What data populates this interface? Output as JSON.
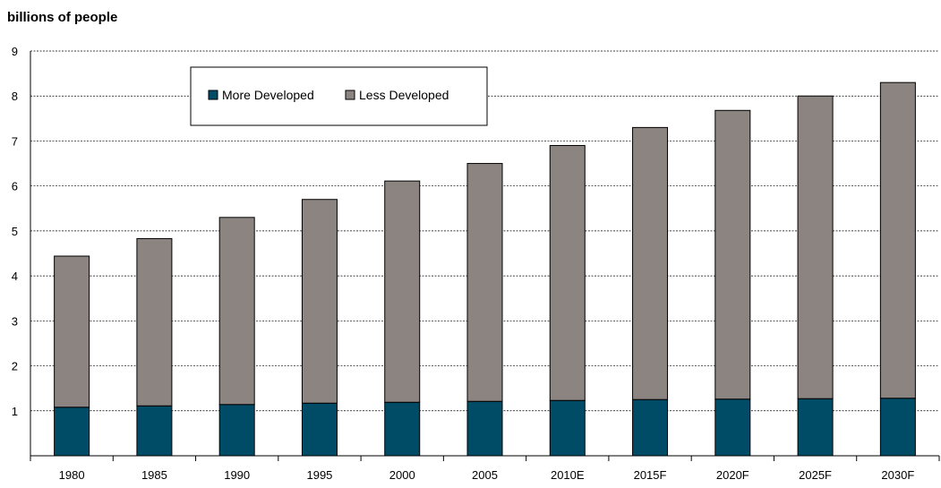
{
  "chart_data": {
    "type": "bar",
    "stacked": true,
    "title": "",
    "xlabel": "",
    "ylabel": "billions of people",
    "ylim": [
      0,
      9
    ],
    "yticks": [
      1,
      2,
      3,
      4,
      5,
      6,
      7,
      8,
      9
    ],
    "grid": true,
    "legend_position": "top-left",
    "categories": [
      "1980",
      "1985",
      "1990",
      "1995",
      "2000",
      "2005",
      "2010E",
      "2015F",
      "2020F",
      "2025F",
      "2030F"
    ],
    "series": [
      {
        "name": "More Developed",
        "color": "#004C66",
        "values": [
          1.08,
          1.11,
          1.14,
          1.17,
          1.19,
          1.21,
          1.23,
          1.25,
          1.26,
          1.27,
          1.28
        ]
      },
      {
        "name": "Less Developed",
        "color": "#8C8480",
        "values": [
          3.36,
          3.72,
          4.16,
          4.53,
          4.92,
          5.29,
          5.67,
          6.05,
          6.42,
          6.73,
          7.02
        ]
      }
    ]
  }
}
